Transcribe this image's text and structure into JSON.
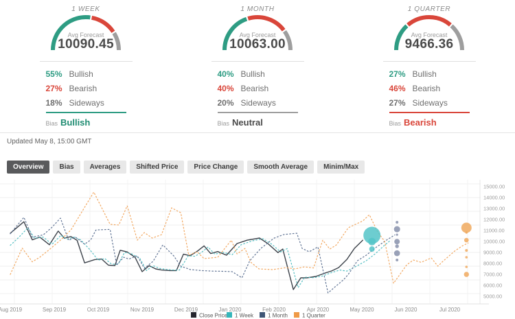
{
  "colors": {
    "bullish": "#2e9c83",
    "bearish": "#d9463a",
    "sideways": "#9e9e9e",
    "neutral_text": "#4a4a4a",
    "sideways_text": "#6f6f6f"
  },
  "panels": [
    {
      "period": "1 WEEK",
      "avg_label": "Avg Forecast",
      "avg_value": "10090.45",
      "gauge_pcts": [
        55,
        27,
        18
      ],
      "rows": [
        {
          "pct": "55%",
          "label": "Bullish",
          "color": "#2e9c83"
        },
        {
          "pct": "27%",
          "label": "Bearish",
          "color": "#d9463a"
        },
        {
          "pct": "18%",
          "label": "Sideways",
          "color": "#6f6f6f"
        }
      ],
      "bias_label": "Bias",
      "bias_value": "Bullish",
      "bias_color": "#1f8c72",
      "rule_color": "#2e9c83"
    },
    {
      "period": "1 MONTH",
      "avg_label": "Avg Forecast",
      "avg_value": "10063.00",
      "gauge_pcts": [
        40,
        40,
        20
      ],
      "rows": [
        {
          "pct": "40%",
          "label": "Bullish",
          "color": "#2e9c83"
        },
        {
          "pct": "40%",
          "label": "Bearish",
          "color": "#d9463a"
        },
        {
          "pct": "20%",
          "label": "Sideways",
          "color": "#6f6f6f"
        }
      ],
      "bias_label": "Bias",
      "bias_value": "Neutral",
      "bias_color": "#4a4a4a",
      "rule_color": "#9e9e9e"
    },
    {
      "period": "1 QUARTER",
      "avg_label": "Avg Forecast",
      "avg_value": "9466.36",
      "gauge_pcts": [
        27,
        46,
        27
      ],
      "rows": [
        {
          "pct": "27%",
          "label": "Bullish",
          "color": "#2e9c83"
        },
        {
          "pct": "46%",
          "label": "Bearish",
          "color": "#d9463a"
        },
        {
          "pct": "27%",
          "label": "Sideways",
          "color": "#6f6f6f"
        }
      ],
      "bias_label": "Bias",
      "bias_value": "Bearish",
      "bias_color": "#d9463a",
      "rule_color": "#d9463a"
    }
  ],
  "updated": "Updated May 8, 15:00 GMT",
  "tabs": [
    {
      "label": "Overview",
      "selected": true
    },
    {
      "label": "Bias",
      "selected": false
    },
    {
      "label": "Averages",
      "selected": false
    },
    {
      "label": "Shifted Price",
      "selected": false
    },
    {
      "label": "Price Change",
      "selected": false
    },
    {
      "label": "Smooth Average",
      "selected": false
    },
    {
      "label": "Minim/Max",
      "selected": false
    }
  ],
  "chart_data": {
    "type": "line",
    "title": "",
    "x_axis": {
      "tick_labels": [
        "Aug 2019",
        "Sep 2019",
        "Oct 2019",
        "Nov 2019",
        "Dec 2019",
        "Jan 2020",
        "Feb 2020",
        "Apr 2020",
        "May 2020",
        "Jun 2020",
        "Jul 2020"
      ],
      "note": "x unit = one tick interval, 0 = Aug 2019; Mar 2020 is not labeled on the axis"
    },
    "y_axis": {
      "tick_labels": [
        "15000.00",
        "14000.00",
        "13000.00",
        "12000.00",
        "11000.00",
        "10000.00",
        "9000.00",
        "8000.00",
        "7000.00",
        "6000.00",
        "5000.00"
      ],
      "min": 5000,
      "max": 15000,
      "step": 1000,
      "side": "right"
    },
    "series": [
      {
        "name": "Close Price",
        "style": "solid",
        "color": "#3b4149",
        "points": [
          [
            0,
            10750
          ],
          [
            0.31,
            11800
          ],
          [
            0.5,
            10150
          ],
          [
            0.67,
            10400
          ],
          [
            0.89,
            9700
          ],
          [
            1.09,
            10950
          ],
          [
            1.23,
            10300
          ],
          [
            1.38,
            10450
          ],
          [
            1.52,
            10100
          ],
          [
            1.69,
            8050
          ],
          [
            1.92,
            8350
          ],
          [
            2.08,
            8400
          ],
          [
            2.23,
            7850
          ],
          [
            2.38,
            7800
          ],
          [
            2.5,
            9200
          ],
          [
            2.66,
            9050
          ],
          [
            2.84,
            8550
          ],
          [
            3.0,
            7250
          ],
          [
            3.16,
            7800
          ],
          [
            3.31,
            7500
          ],
          [
            3.44,
            7400
          ],
          [
            3.63,
            7350
          ],
          [
            3.78,
            7350
          ],
          [
            3.94,
            8850
          ],
          [
            4.09,
            8700
          ],
          [
            4.25,
            9100
          ],
          [
            4.41,
            9600
          ],
          [
            4.56,
            8900
          ],
          [
            4.72,
            9080
          ],
          [
            4.92,
            8750
          ],
          [
            5.16,
            9810
          ],
          [
            5.39,
            10120
          ],
          [
            5.67,
            10310
          ],
          [
            5.86,
            9810
          ],
          [
            6.09,
            8990
          ],
          [
            6.2,
            9310
          ],
          [
            6.44,
            5620
          ],
          [
            6.61,
            6690
          ],
          [
            6.75,
            6690
          ],
          [
            6.95,
            6810
          ],
          [
            7.16,
            7120
          ],
          [
            7.31,
            7310
          ],
          [
            7.47,
            7620
          ],
          [
            7.66,
            8370
          ],
          [
            7.83,
            9370
          ],
          [
            8.02,
            10120
          ]
        ]
      },
      {
        "name": "1 Week",
        "style": "dotted",
        "color": "#52bec2",
        "points": [
          [
            0,
            9650
          ],
          [
            0.2,
            10400
          ],
          [
            0.4,
            11250
          ],
          [
            0.55,
            10300
          ],
          [
            0.75,
            10400
          ],
          [
            0.95,
            9750
          ],
          [
            1.15,
            10550
          ],
          [
            1.3,
            10200
          ],
          [
            1.45,
            10400
          ],
          [
            1.6,
            10150
          ],
          [
            1.8,
            9300
          ],
          [
            2.0,
            8300
          ],
          [
            2.15,
            8450
          ],
          [
            2.3,
            7950
          ],
          [
            2.45,
            7900
          ],
          [
            2.6,
            9000
          ],
          [
            2.75,
            8900
          ],
          [
            2.95,
            8450
          ],
          [
            3.1,
            7350
          ],
          [
            3.25,
            7800
          ],
          [
            3.4,
            7550
          ],
          [
            3.55,
            7450
          ],
          [
            3.7,
            7400
          ],
          [
            3.85,
            7400
          ],
          [
            4.05,
            8700
          ],
          [
            4.2,
            8650
          ],
          [
            4.35,
            9000
          ],
          [
            4.5,
            9500
          ],
          [
            4.65,
            8850
          ],
          [
            4.85,
            9000
          ],
          [
            5.05,
            8800
          ],
          [
            5.25,
            9700
          ],
          [
            5.5,
            10050
          ],
          [
            5.75,
            10250
          ],
          [
            5.95,
            9750
          ],
          [
            6.15,
            9050
          ],
          [
            6.3,
            9350
          ],
          [
            6.55,
            5800
          ],
          [
            6.7,
            6750
          ],
          [
            6.9,
            6700
          ],
          [
            7.1,
            6850
          ],
          [
            7.3,
            7150
          ],
          [
            7.5,
            7400
          ],
          [
            7.66,
            7300
          ],
          [
            7.9,
            7800
          ],
          [
            8.1,
            8250
          ],
          [
            8.3,
            8870
          ],
          [
            8.5,
            9600
          ],
          [
            8.65,
            10100
          ]
        ]
      },
      {
        "name": "1 Month",
        "style": "dotted",
        "color": "#5e7293",
        "points": [
          [
            0,
            10700
          ],
          [
            0.31,
            12200
          ],
          [
            0.5,
            10400
          ],
          [
            0.75,
            10600
          ],
          [
            0.95,
            11300
          ],
          [
            1.14,
            12130
          ],
          [
            1.33,
            10100
          ],
          [
            1.48,
            10400
          ],
          [
            1.69,
            9750
          ],
          [
            1.83,
            10150
          ],
          [
            1.95,
            11050
          ],
          [
            2.27,
            11100
          ],
          [
            2.42,
            7870
          ],
          [
            2.58,
            8560
          ],
          [
            2.7,
            8400
          ],
          [
            2.89,
            8700
          ],
          [
            3.05,
            7550
          ],
          [
            3.25,
            8200
          ],
          [
            3.47,
            9690
          ],
          [
            3.72,
            8680
          ],
          [
            3.88,
            7750
          ],
          [
            4.1,
            7440
          ],
          [
            4.35,
            7350
          ],
          [
            4.6,
            7300
          ],
          [
            4.85,
            7280
          ],
          [
            5.05,
            7250
          ],
          [
            5.27,
            6690
          ],
          [
            5.45,
            8250
          ],
          [
            5.7,
            9370
          ],
          [
            6.0,
            10300
          ],
          [
            6.22,
            10630
          ],
          [
            6.52,
            10750
          ],
          [
            6.64,
            9370
          ],
          [
            6.8,
            9060
          ],
          [
            7.0,
            9500
          ],
          [
            7.23,
            5310
          ],
          [
            7.39,
            5870
          ],
          [
            7.58,
            6500
          ],
          [
            7.69,
            7000
          ],
          [
            7.9,
            8250
          ],
          [
            8.1,
            8750
          ],
          [
            8.3,
            9400
          ],
          [
            8.55,
            10100
          ],
          [
            8.75,
            10600
          ]
        ]
      },
      {
        "name": "1 Quarter",
        "style": "dotted",
        "color": "#f2a75f",
        "points": [
          [
            0,
            7000
          ],
          [
            0.27,
            9400
          ],
          [
            0.5,
            8150
          ],
          [
            0.67,
            8560
          ],
          [
            0.9,
            9300
          ],
          [
            1.14,
            10120
          ],
          [
            1.38,
            11050
          ],
          [
            1.9,
            14500
          ],
          [
            2.27,
            11560
          ],
          [
            2.47,
            11500
          ],
          [
            2.66,
            13250
          ],
          [
            2.89,
            10120
          ],
          [
            3.05,
            10810
          ],
          [
            3.23,
            10310
          ],
          [
            3.44,
            10620
          ],
          [
            3.67,
            13060
          ],
          [
            3.88,
            12620
          ],
          [
            4.06,
            8750
          ],
          [
            4.25,
            9060
          ],
          [
            4.41,
            8440
          ],
          [
            4.72,
            8560
          ],
          [
            5.03,
            10120
          ],
          [
            5.16,
            8870
          ],
          [
            5.34,
            9370
          ],
          [
            5.47,
            8120
          ],
          [
            5.66,
            7500
          ],
          [
            5.97,
            7440
          ],
          [
            6.28,
            7620
          ],
          [
            6.48,
            7500
          ],
          [
            6.69,
            7690
          ],
          [
            6.9,
            7590
          ],
          [
            7.11,
            10120
          ],
          [
            7.27,
            9310
          ],
          [
            7.42,
            9690
          ],
          [
            7.69,
            11250
          ],
          [
            8.02,
            11870
          ],
          [
            8.17,
            12440
          ],
          [
            8.36,
            10870
          ],
          [
            8.52,
            10000
          ],
          [
            8.72,
            6190
          ],
          [
            9.02,
            7870
          ],
          [
            9.17,
            8310
          ],
          [
            9.35,
            8100
          ],
          [
            9.58,
            8500
          ],
          [
            9.73,
            7750
          ],
          [
            9.84,
            8180
          ],
          [
            10.11,
            9120
          ],
          [
            10.27,
            9560
          ],
          [
            10.42,
            9870
          ]
        ]
      }
    ],
    "bubbles": [
      {
        "series": "1 Week",
        "color": "#54c4c8",
        "x": 8.23,
        "items": [
          {
            "value": 10560,
            "r": 12.5
          },
          {
            "value": 9990,
            "r": 5.5
          },
          {
            "value": 9310,
            "r": 4
          }
        ]
      },
      {
        "series": "1 Month",
        "color": "#8791ab",
        "x": 8.8,
        "items": [
          {
            "value": 11750,
            "r": 2
          },
          {
            "value": 11120,
            "r": 4.5
          },
          {
            "value": 10620,
            "r": 1.6
          },
          {
            "value": 9990,
            "r": 4
          },
          {
            "value": 9560,
            "r": 2.7
          },
          {
            "value": 8930,
            "r": 4.3
          },
          {
            "value": 8310,
            "r": 2
          }
        ]
      },
      {
        "series": "1 Quarter",
        "color": "#f0a95e",
        "x": 10.38,
        "items": [
          {
            "value": 11250,
            "r": 7.5
          },
          {
            "value": 10810,
            "r": 1.7
          },
          {
            "value": 10120,
            "r": 3.3
          },
          {
            "value": 9190,
            "r": 2
          },
          {
            "value": 8560,
            "r": 1.8
          },
          {
            "value": 7690,
            "r": 1.8
          },
          {
            "value": 7000,
            "r": 3.7
          }
        ]
      }
    ],
    "legend": [
      {
        "label": "Close Price",
        "color": "#26262e"
      },
      {
        "label": "1 Week",
        "color": "#35b6ba"
      },
      {
        "label": "1 Month",
        "color": "#3f5676"
      },
      {
        "label": "1 Quarter",
        "color": "#ef9a47"
      }
    ],
    "grid": {
      "h_color": "#efefef",
      "v_color": "#f3f3f3",
      "axis_color": "#e2e2e2"
    }
  }
}
